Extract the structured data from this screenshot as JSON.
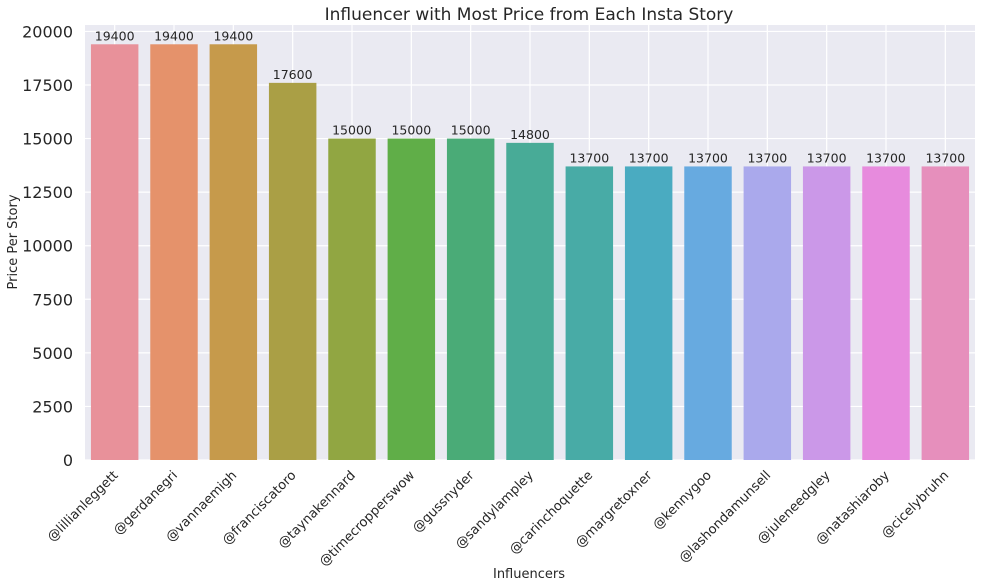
{
  "chart_data": {
    "type": "bar",
    "title": "Influencer with Most Price from Each Insta Story",
    "xlabel": "Influencers",
    "ylabel": "Price Per Story",
    "ylim": [
      0,
      20300
    ],
    "yticks": [
      0,
      2500,
      5000,
      7500,
      10000,
      12500,
      15000,
      17500,
      20000
    ],
    "grid": true,
    "categories": [
      "@lillianleggett",
      "@gerdanegri",
      "@vannaemigh",
      "@franciscatoro",
      "@taynakennard",
      "@timecropperswow",
      "@gussnyder",
      "@sandylampley",
      "@carinchoquette",
      "@margretoxner",
      "@kennygoo",
      "@lashondamunsell",
      "@juleneedgley",
      "@natashiaroby",
      "@cicelybruhn"
    ],
    "values": [
      19400,
      19400,
      19400,
      17600,
      15000,
      15000,
      15000,
      14800,
      13700,
      13700,
      13700,
      13700,
      13700,
      13700,
      13700
    ],
    "colors": [
      "#e8919a",
      "#e5926b",
      "#c69a4b",
      "#aa9f45",
      "#91a642",
      "#60ae48",
      "#4aab77",
      "#48ab97",
      "#48aba6",
      "#4aabc1",
      "#67aae0",
      "#aaa9ec",
      "#cb98e8",
      "#e78bdd",
      "#e68fbc"
    ],
    "background": "#eaeaf2",
    "gridcolor": "#ffffff"
  }
}
